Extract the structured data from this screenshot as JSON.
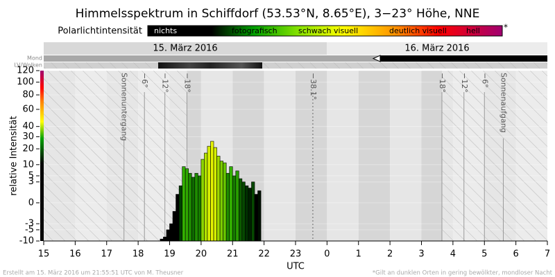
{
  "chart_data": {
    "type": "bar",
    "title": "Himmelsspektrum in Schiffdorf (53.53°N, 8.65°E), 3−23° Höhe, NNE",
    "legend_title": "Polarlichtintensität",
    "legend_labels": [
      "nichts",
      "fotografisch",
      "schwach visuell",
      "deutlich visuell",
      "hell"
    ],
    "legend_note": "*",
    "date_labels": [
      "15. März 2016",
      "16. März 2016"
    ],
    "row_labels": [
      "Mond",
      "LV/Wolken"
    ],
    "y_label": "relative Intensität",
    "x_label": "UTC",
    "footer_left": "Erstellt am 15. März 2016 um 21:55:51 UTC von M. Theusner",
    "footer_right": "*Gilt an dunklen Orten in gering bewölkter, mondloser Nacht",
    "y_scale": "signed-sqrt",
    "xlim": [
      15,
      31
    ],
    "xticks": [
      15,
      16,
      17,
      18,
      19,
      20,
      21,
      22,
      23,
      {
        "value": 24,
        "label": "0"
      },
      {
        "value": 25,
        "label": "1"
      },
      {
        "value": 26,
        "label": "2"
      },
      {
        "value": 27,
        "label": "3"
      },
      {
        "value": 28,
        "label": "4"
      },
      {
        "value": 29,
        "label": "5"
      },
      {
        "value": 30,
        "label": "6"
      },
      {
        "value": 31,
        "label": "7"
      }
    ],
    "ylim": [
      -10,
      120
    ],
    "yticks": [
      -10,
      -5,
      -3,
      0,
      3,
      5,
      10,
      20,
      30,
      40,
      60,
      80,
      100,
      120
    ],
    "grid": true,
    "markers": [
      {
        "label": "Sonnenuntergang",
        "x": 17.55
      },
      {
        "label": "−6°",
        "x": 18.2
      },
      {
        "label": "−12°",
        "x": 18.85
      },
      {
        "label": "−18°",
        "x": 19.55
      },
      {
        "label": "−38.1°",
        "x": 23.55,
        "dashed": true
      },
      {
        "label": "−18°",
        "x": 27.65
      },
      {
        "label": "−12°",
        "x": 28.35
      },
      {
        "label": "−6°",
        "x": 29.0
      },
      {
        "label": "Sonnenaufgang",
        "x": 29.6
      }
    ],
    "x": [
      18.7,
      18.8,
      18.9,
      19.0,
      19.1,
      19.2,
      19.3,
      19.4,
      19.5,
      19.6,
      19.7,
      19.8,
      19.9,
      20.0,
      20.1,
      20.2,
      20.3,
      20.4,
      20.5,
      20.6,
      20.7,
      20.8,
      20.9,
      21.0,
      21.1,
      21.2,
      21.3,
      21.4,
      21.5,
      21.6,
      21.7,
      21.8
    ],
    "values": [
      -9,
      -8,
      -5,
      -3,
      -0.5,
      0.5,
      2,
      9,
      8,
      6,
      4.5,
      6,
      5,
      13,
      17,
      22,
      26,
      21,
      15,
      12,
      11,
      6,
      9,
      5,
      7,
      4,
      3,
      2,
      1.5,
      3,
      0.5,
      1
    ],
    "colors": [
      "#000000",
      "#000000",
      "#000000",
      "#000000",
      "#000000",
      "#000000",
      "#004000",
      "#33b000",
      "#30a800",
      "#1e8c00",
      "#0f6a00",
      "#1e8c00",
      "#167a00",
      "#8cd400",
      "#b4e400",
      "#d8f000",
      "#e6f400",
      "#d4ee00",
      "#9ed800",
      "#7ccc00",
      "#66c400",
      "#1e8c00",
      "#33b000",
      "#167a00",
      "#289c00",
      "#0c5a00",
      "#064800",
      "#003000",
      "#002000",
      "#064800",
      "#000000",
      "#001000"
    ]
  }
}
